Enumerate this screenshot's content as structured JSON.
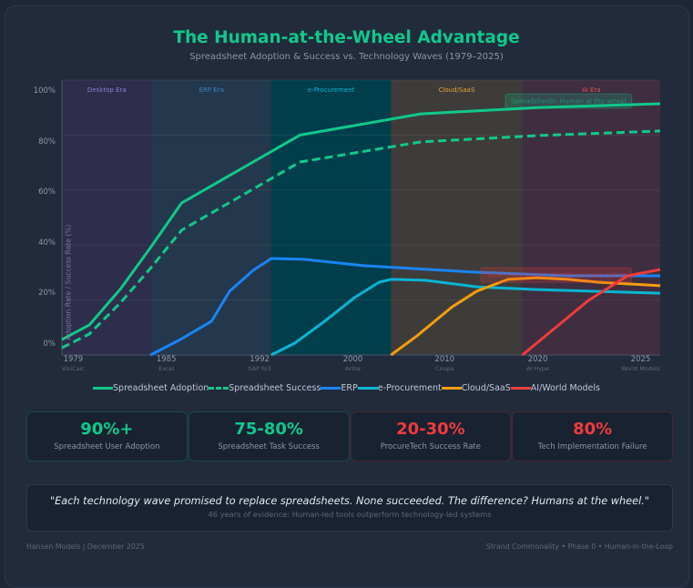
{
  "header": {
    "title": "The Human-at-the-Wheel Advantage",
    "subtitle": "Spreadsheet Adoption & Success vs. Technology Waves (1979–2025)"
  },
  "chart_data": {
    "type": "line",
    "title": "The Human-at-the-Wheel Advantage",
    "subtitle": "Spreadsheet Adoption & Success vs. Technology Waves (1979–2025)",
    "xlabel": "",
    "ylabel": "Adoption Rate / Success Rate (%)",
    "xlim": [
      1979,
      2025
    ],
    "ylim": [
      0,
      100
    ],
    "grid": true,
    "y_ticks": [
      "100%",
      "80%",
      "60%",
      "40%",
      "20%",
      "0%"
    ],
    "y_grid_values": [
      20,
      40,
      60,
      80,
      100
    ],
    "x_ticks": [
      {
        "year": "1979",
        "event": "VisiCalc"
      },
      {
        "year": "1985",
        "event": "Excel"
      },
      {
        "year": "1992",
        "event": "SAP R/3"
      },
      {
        "year": "2000",
        "event": "Ariba"
      },
      {
        "year": "2010",
        "event": "Coupa"
      },
      {
        "year": "2020",
        "event": "AI Hype"
      },
      {
        "year": "2025",
        "event": "World Models"
      }
    ],
    "eras": [
      {
        "label": "Desktop Era",
        "from": 1979,
        "to": 1985.9,
        "fill": "#2e2d4b",
        "text_color": "#8b7fd4"
      },
      {
        "label": "ERP Era",
        "from": 1985.9,
        "to": 1995.1,
        "fill": "#24384d",
        "text_color": "#3b82c4"
      },
      {
        "label": "e-Procurement",
        "from": 1995.1,
        "to": 2004.3,
        "fill": "#013e4b",
        "text_color": "#06b6d4"
      },
      {
        "label": "Cloud/SaaS",
        "from": 2004.3,
        "to": 2014.4,
        "fill": "#3e3c3a",
        "text_color": "#e8a23a"
      },
      {
        "label": "AI Era",
        "from": 2014.4,
        "to": 2025,
        "fill": "#3f2e40",
        "text_color": "#e0505a"
      }
    ],
    "series": [
      {
        "name": "Spreadsheet Adoption",
        "color": "#10c98a",
        "dashed": false,
        "points": [
          [
            1979,
            5.6
          ],
          [
            1981.1,
            10.9
          ],
          [
            1983.5,
            24
          ],
          [
            1985.8,
            39
          ],
          [
            1988.2,
            55.3
          ],
          [
            1997.3,
            80
          ],
          [
            2006.6,
            87.7
          ],
          [
            2015.5,
            90
          ],
          [
            2025,
            91.4
          ]
        ]
      },
      {
        "name": "Spreadsheet Success",
        "color": "#10c98a",
        "dashed": true,
        "points": [
          [
            1979,
            2.6
          ],
          [
            1981.1,
            7.6
          ],
          [
            1983.5,
            19
          ],
          [
            1985.8,
            31.5
          ],
          [
            1988.2,
            45.4
          ],
          [
            1997.3,
            70.2
          ],
          [
            2006.6,
            77.5
          ],
          [
            2015.5,
            79.8
          ],
          [
            2025,
            81.5
          ]
        ]
      },
      {
        "name": "ERP",
        "color": "#1a84f5",
        "dashed": false,
        "points": [
          [
            1985.8,
            0
          ],
          [
            1988.1,
            5.6
          ],
          [
            1990.5,
            12.3
          ],
          [
            1991.9,
            23.2
          ],
          [
            1993.7,
            30.8
          ],
          [
            1995.1,
            35.1
          ],
          [
            1997.6,
            34.8
          ],
          [
            2002.2,
            32.5
          ],
          [
            2010.9,
            30.1
          ],
          [
            2017.9,
            28.8
          ],
          [
            2025,
            28.8
          ]
        ]
      },
      {
        "name": "e-Procurement",
        "color": "#06b6d4",
        "dashed": false,
        "points": [
          [
            1995.1,
            0
          ],
          [
            1996.9,
            4.3
          ],
          [
            1999.2,
            12.3
          ],
          [
            2001.5,
            20.9
          ],
          [
            2003.4,
            26.5
          ],
          [
            2004.3,
            27.5
          ],
          [
            2006.9,
            27.2
          ],
          [
            2010.9,
            24.8
          ],
          [
            2015.5,
            23.8
          ],
          [
            2025,
            22.5
          ]
        ]
      },
      {
        "name": "Cloud/SaaS",
        "color": "#f59e0b",
        "dashed": false,
        "points": [
          [
            2004.3,
            0
          ],
          [
            2006.2,
            6.6
          ],
          [
            2009,
            17.5
          ],
          [
            2010.9,
            23.2
          ],
          [
            2013.3,
            27.5
          ],
          [
            2015.5,
            28.1
          ],
          [
            2017.9,
            27.5
          ],
          [
            2020.2,
            26.5
          ],
          [
            2025,
            25.2
          ]
        ]
      },
      {
        "name": "AI/World Models",
        "color": "#ef3b3b",
        "dashed": false,
        "points": [
          [
            2014.4,
            0
          ],
          [
            2019.5,
            19.9
          ],
          [
            2022.5,
            28.8
          ],
          [
            2025,
            31.1
          ]
        ]
      }
    ],
    "annotations": [
      {
        "text": "Spreadsheets: Human at the wheel",
        "year": 2017.95,
        "value": 92.4,
        "color": "#10c98a"
      },
      {
        "text": "Technology waves: 20-30% success ceiling",
        "year": 2017,
        "value": 29.1,
        "color": "#ef3b3b"
      }
    ],
    "legend_position": "bottom-center"
  },
  "legend": [
    {
      "label": "Spreadsheet Adoption",
      "color": "#10c98a",
      "dashed": false
    },
    {
      "label": "Spreadsheet Success",
      "color": "#10c98a",
      "dashed": true
    },
    {
      "label": "ERP",
      "color": "#1a84f5",
      "dashed": false
    },
    {
      "label": "e-Procurement",
      "color": "#06b6d4",
      "dashed": false
    },
    {
      "label": "Cloud/SaaS",
      "color": "#f59e0b",
      "dashed": false
    },
    {
      "label": "AI/World Models",
      "color": "#ef3b3b",
      "dashed": false
    }
  ],
  "stats": [
    {
      "value": "90%+",
      "label": "Spreadsheet User Adoption",
      "color": "#10c98a",
      "tone": "good"
    },
    {
      "value": "75-80%",
      "label": "Spreadsheet Task Success",
      "color": "#10c98a",
      "tone": "good"
    },
    {
      "value": "20-30%",
      "label": "ProcureTech Success Rate",
      "color": "#f03b3b",
      "tone": "bad"
    },
    {
      "value": "80%",
      "label": "Tech Implementation Failure",
      "color": "#f03b3b",
      "tone": "bad"
    }
  ],
  "quote": {
    "text": "\"Each technology wave promised to replace spreadsheets. None succeeded. The difference? Humans at the wheel.\"",
    "subtext": "46 years of evidence: Human-led tools outperform technology-led systems"
  },
  "footer": {
    "left": "Hansen Models | December 2025",
    "right": "Strand Commonality • Phase 0 • Human-in-the-Loop"
  }
}
